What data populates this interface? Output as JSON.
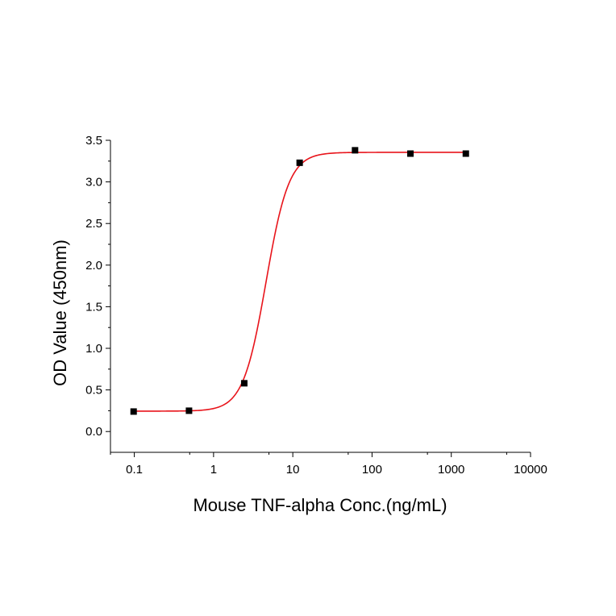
{
  "chart_data": {
    "type": "scatter",
    "title": "",
    "xlabel": "Mouse TNF-alpha Conc.(ng/mL)",
    "ylabel": "OD Value (450nm)",
    "x_scale": "log",
    "xlim": [
      0.05,
      10000
    ],
    "ylim": [
      -0.25,
      3.5
    ],
    "x_ticks": [
      0.1,
      1,
      10,
      100,
      1000,
      10000
    ],
    "x_tick_labels": [
      "0.1",
      "1",
      "10",
      "100",
      "1000",
      "10000"
    ],
    "y_ticks": [
      0.0,
      0.5,
      1.0,
      1.5,
      2.0,
      2.5,
      3.0,
      3.5
    ],
    "y_tick_labels": [
      "0.0",
      "0.5",
      "1.0",
      "1.5",
      "2.0",
      "2.5",
      "3.0",
      "3.5"
    ],
    "grid": false,
    "series": [
      {
        "kind": "points",
        "marker": "square",
        "color": "#000000",
        "x": [
          0.098,
          0.49,
          2.44,
          12.2,
          61.0,
          305,
          1526
        ],
        "y": [
          0.24,
          0.25,
          0.58,
          3.23,
          3.38,
          3.34,
          3.34
        ]
      },
      {
        "kind": "fit-curve",
        "model": "4PL",
        "color": "#e8141b",
        "bottom": 0.245,
        "top": 3.355,
        "ec50": 4.6,
        "hill": 3.0,
        "x_range": [
          0.098,
          1526
        ]
      }
    ]
  }
}
